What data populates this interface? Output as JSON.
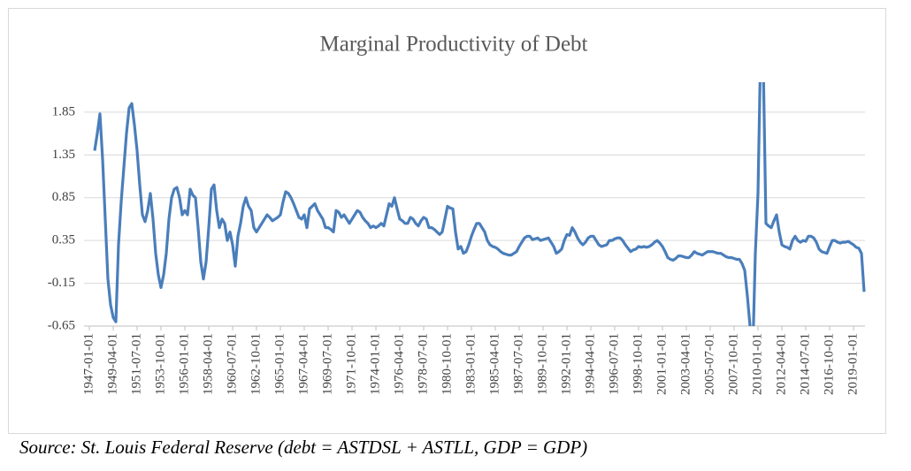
{
  "chart_data": {
    "type": "line",
    "title": "Marginal Productivity of Debt",
    "source": "Source: St. Louis Federal Reserve (debt = ASTDSL + ASTLL, GDP = GDP)",
    "ylim": [
      -0.65,
      2.2
    ],
    "yticks": [
      -0.65,
      -0.15,
      0.35,
      0.85,
      1.35,
      1.85
    ],
    "grid": true,
    "categories": [
      "1947-01-01",
      null,
      null,
      null,
      null,
      null,
      null,
      null,
      null,
      "1949-04-01",
      null,
      null,
      null,
      null,
      null,
      null,
      null,
      null,
      "1951-07-01",
      null,
      null,
      null,
      null,
      null,
      null,
      null,
      null,
      "1953-10-01",
      null,
      null,
      null,
      null,
      null,
      null,
      null,
      null,
      "1956-01-01",
      null,
      null,
      null,
      null,
      null,
      null,
      null,
      null,
      "1958-04-01",
      null,
      null,
      null,
      null,
      null,
      null,
      null,
      null,
      "1960-07-01",
      null,
      null,
      null,
      null,
      null,
      null,
      null,
      null,
      "1962-10-01",
      null,
      null,
      null,
      null,
      null,
      null,
      null,
      null,
      "1965-01-01",
      null,
      null,
      null,
      null,
      null,
      null,
      null,
      null,
      "1967-04-01",
      null,
      null,
      null,
      null,
      null,
      null,
      null,
      null,
      "1969-07-01",
      null,
      null,
      null,
      null,
      null,
      null,
      null,
      null,
      "1971-10-01",
      null,
      null,
      null,
      null,
      null,
      null,
      null,
      null,
      "1974-01-01",
      null,
      null,
      null,
      null,
      null,
      null,
      null,
      null,
      "1976-04-01",
      null,
      null,
      null,
      null,
      null,
      null,
      null,
      null,
      "1978-07-01",
      null,
      null,
      null,
      null,
      null,
      null,
      null,
      null,
      "1980-10-01",
      null,
      null,
      null,
      null,
      null,
      null,
      null,
      null,
      "1983-01-01",
      null,
      null,
      null,
      null,
      null,
      null,
      null,
      null,
      "1985-04-01",
      null,
      null,
      null,
      null,
      null,
      null,
      null,
      null,
      "1987-07-01",
      null,
      null,
      null,
      null,
      null,
      null,
      null,
      null,
      "1989-10-01",
      null,
      null,
      null,
      null,
      null,
      null,
      null,
      null,
      "1992-01-01",
      null,
      null,
      null,
      null,
      null,
      null,
      null,
      null,
      "1994-04-01",
      null,
      null,
      null,
      null,
      null,
      null,
      null,
      null,
      "1996-07-01",
      null,
      null,
      null,
      null,
      null,
      null,
      null,
      null,
      "1998-10-01",
      null,
      null,
      null,
      null,
      null,
      null,
      null,
      null,
      "2001-01-01",
      null,
      null,
      null,
      null,
      null,
      null,
      null,
      null,
      "2003-04-01",
      null,
      null,
      null,
      null,
      null,
      null,
      null,
      null,
      "2005-07-01",
      null,
      null,
      null,
      null,
      null,
      null,
      null,
      null,
      "2007-10-01",
      null,
      null,
      null,
      null,
      null,
      null,
      null,
      null,
      "2010-01-01",
      null,
      null,
      null,
      null,
      null,
      null,
      null,
      null,
      "2012-04-01",
      null,
      null,
      null,
      null,
      null,
      null,
      null,
      null,
      "2014-07-01",
      null,
      null,
      null,
      null,
      null,
      null,
      null,
      null,
      "2016-10-01",
      null,
      null,
      null,
      null,
      null,
      null,
      null,
      null,
      "2019-01-01",
      null,
      null,
      null,
      null
    ],
    "series": [
      {
        "name": "Marginal Productivity of Debt",
        "color": "#4a7ebb",
        "values": [
          null,
          null,
          1.4,
          1.6,
          1.83,
          1.3,
          0.6,
          -0.1,
          -0.4,
          -0.55,
          -0.6,
          0.3,
          0.8,
          1.2,
          1.6,
          1.9,
          1.95,
          1.7,
          1.4,
          1.0,
          0.65,
          0.57,
          0.7,
          0.9,
          0.6,
          0.2,
          -0.05,
          -0.2,
          -0.05,
          0.2,
          0.6,
          0.85,
          0.95,
          0.97,
          0.85,
          0.65,
          0.7,
          0.65,
          0.95,
          0.88,
          0.85,
          0.5,
          0.1,
          -0.1,
          0.1,
          0.5,
          0.95,
          1.0,
          0.7,
          0.5,
          0.6,
          0.55,
          0.35,
          0.45,
          0.3,
          0.05,
          0.4,
          0.55,
          0.75,
          0.85,
          0.75,
          0.7,
          0.5,
          0.45,
          0.5,
          0.55,
          0.6,
          0.65,
          0.62,
          0.58,
          0.6,
          0.62,
          0.65,
          0.8,
          0.92,
          0.9,
          0.85,
          0.78,
          0.7,
          0.62,
          0.6,
          0.65,
          0.5,
          0.72,
          0.75,
          0.78,
          0.7,
          0.65,
          0.6,
          0.5,
          0.5,
          0.48,
          0.45,
          0.7,
          0.68,
          0.62,
          0.65,
          0.6,
          0.55,
          0.6,
          0.65,
          0.7,
          0.68,
          0.62,
          0.58,
          0.55,
          0.5,
          0.52,
          0.5,
          0.52,
          0.55,
          0.52,
          0.65,
          0.78,
          0.75,
          0.85,
          0.72,
          0.6,
          0.58,
          0.55,
          0.55,
          0.62,
          0.6,
          0.55,
          0.52,
          0.58,
          0.62,
          0.6,
          0.5,
          0.5,
          0.48,
          0.45,
          0.42,
          0.45,
          0.6,
          0.75,
          0.73,
          0.72,
          0.45,
          0.25,
          0.28,
          0.2,
          0.22,
          0.3,
          0.4,
          0.48,
          0.55,
          0.55,
          0.5,
          0.45,
          0.35,
          0.3,
          0.28,
          0.27,
          0.25,
          0.22,
          0.2,
          0.19,
          0.18,
          0.18,
          0.2,
          0.22,
          0.28,
          0.33,
          0.38,
          0.4,
          0.4,
          0.36,
          0.37,
          0.38,
          0.35,
          0.36,
          0.37,
          0.38,
          0.33,
          0.28,
          0.2,
          0.22,
          0.25,
          0.35,
          0.42,
          0.41,
          0.5,
          0.45,
          0.38,
          0.33,
          0.3,
          0.33,
          0.38,
          0.4,
          0.4,
          0.35,
          0.3,
          0.28,
          0.29,
          0.3,
          0.35,
          0.35,
          0.37,
          0.38,
          0.38,
          0.35,
          0.3,
          0.26,
          0.22,
          0.24,
          0.25,
          0.28,
          0.27,
          0.28,
          0.27,
          0.28,
          0.3,
          0.33,
          0.35,
          0.32,
          0.28,
          0.22,
          0.15,
          0.13,
          0.12,
          0.14,
          0.17,
          0.17,
          0.16,
          0.15,
          0.15,
          0.18,
          0.22,
          0.2,
          0.19,
          0.18,
          0.2,
          0.22,
          0.22,
          0.22,
          0.21,
          0.2,
          0.2,
          0.18,
          0.16,
          0.15,
          0.15,
          0.14,
          0.13,
          0.13,
          0.08,
          0.0,
          -0.3,
          -0.65,
          -1.0,
          0.2,
          0.9,
          2.6,
          2.4,
          0.55,
          0.52,
          0.5,
          0.58,
          0.65,
          0.45,
          0.3,
          0.28,
          0.27,
          0.25,
          0.35,
          0.4,
          0.35,
          0.33,
          0.35,
          0.34,
          0.4,
          0.4,
          0.38,
          0.33,
          0.25,
          0.22,
          0.21,
          0.2,
          0.28,
          0.35,
          0.35,
          0.33,
          0.32,
          0.33,
          0.33,
          0.34,
          0.32,
          0.3,
          0.27,
          0.26,
          0.2,
          -0.25
        ]
      }
    ]
  }
}
